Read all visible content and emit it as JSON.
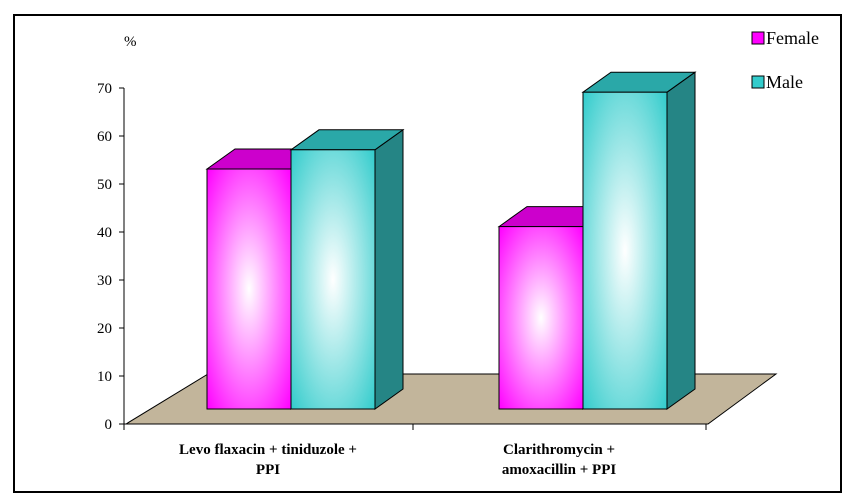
{
  "chart_data": {
    "type": "bar",
    "ylabel": "%",
    "ylim": [
      0,
      70
    ],
    "yticks": [
      0,
      10,
      20,
      30,
      40,
      50,
      60,
      70
    ],
    "categories": [
      [
        "Levo flaxacin + tiniduzole +",
        "PPI"
      ],
      [
        "Clarithromycin +",
        "amoxacillin + PPI"
      ]
    ],
    "series": [
      {
        "name": "Female",
        "values": [
          50,
          38
        ],
        "color": "#ff00ff",
        "top_color": "#cc00cc",
        "side_color": "#990099"
      },
      {
        "name": "Male",
        "values": [
          54,
          66
        ],
        "color": "#33cccc",
        "top_color": "#2aa8a8",
        "side_color": "#258585"
      }
    ],
    "floor_color": "#c2b59b",
    "legend_position": "top-right",
    "grid": false
  }
}
